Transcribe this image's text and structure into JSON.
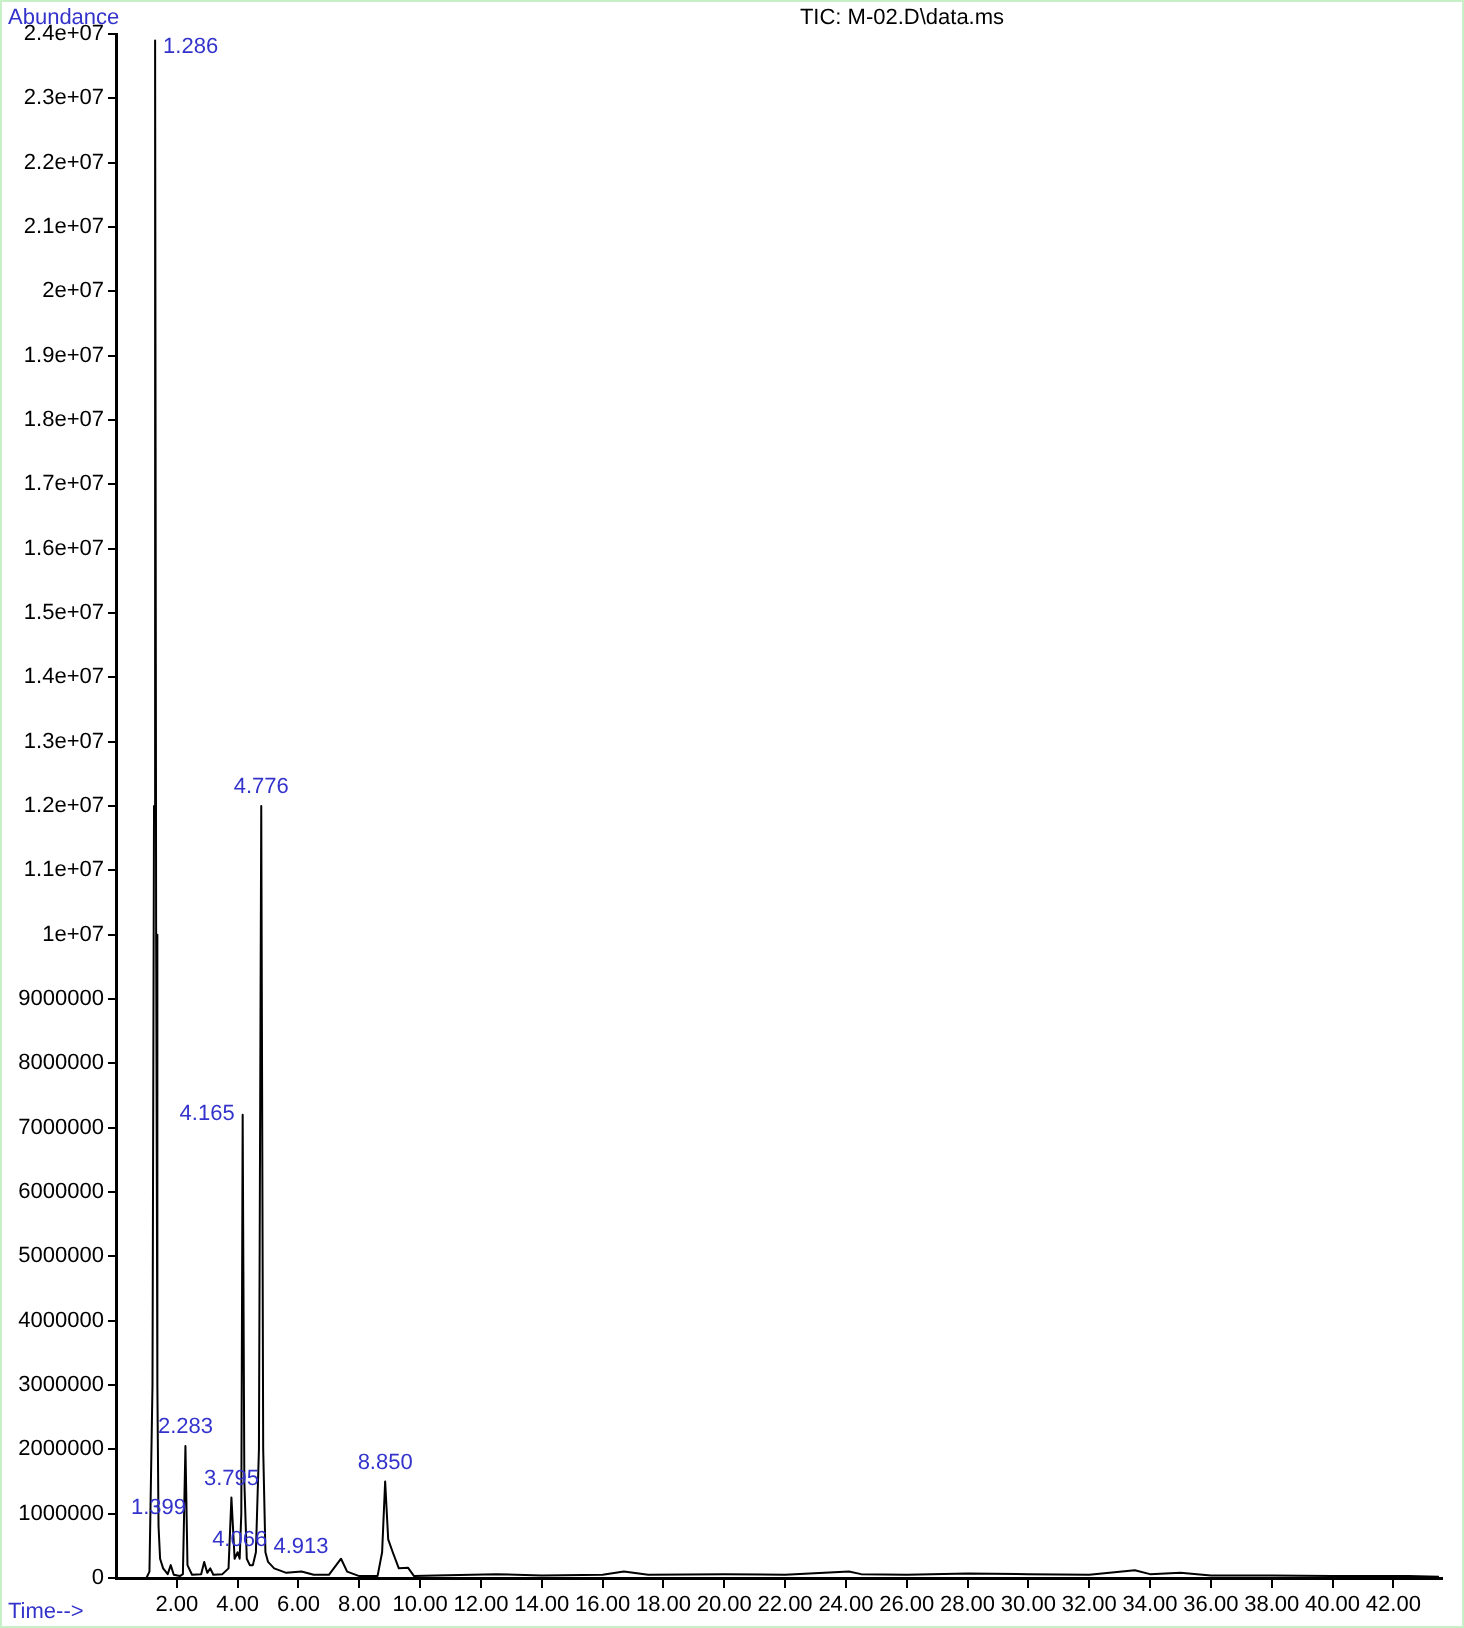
{
  "chart_data": {
    "type": "line",
    "title": "TIC: M-02.D\\data.ms",
    "xlabel": "Time-->",
    "ylabel": "Abundance",
    "series": [
      {
        "color": "#000000",
        "x": [
          0.6,
          1.0,
          1.1,
          1.2,
          1.25,
          1.286,
          1.32,
          1.36,
          1.399,
          1.45,
          1.55,
          1.7,
          1.8,
          1.9,
          2.1,
          2.2,
          2.283,
          2.35,
          2.5,
          2.8,
          2.9,
          3.0,
          3.1,
          3.2,
          3.5,
          3.7,
          3.795,
          3.9,
          4.0,
          4.066,
          4.12,
          4.165,
          4.22,
          4.3,
          4.4,
          4.5,
          4.6,
          4.7,
          4.776,
          4.84,
          4.913,
          5.0,
          5.2,
          5.6,
          6.1,
          6.5,
          7.0,
          7.4,
          7.6,
          8.0,
          8.6,
          8.75,
          8.85,
          8.95,
          9.1,
          9.3,
          9.6,
          9.8,
          10.5,
          12.5,
          14.0,
          16.0,
          16.7,
          17.5,
          20.0,
          22.0,
          24.1,
          24.5,
          26.0,
          28.0,
          30.0,
          32.0,
          33.5,
          34.0,
          35.0,
          36.0,
          38.0,
          40.0,
          42.5,
          43.5
        ],
        "values": [
          0,
          0,
          100000,
          3000000,
          12000000,
          23900000,
          10000000,
          3000000,
          800000,
          300000,
          150000,
          60000,
          200000,
          50000,
          30000,
          60000,
          2050000,
          200000,
          50000,
          60000,
          250000,
          80000,
          150000,
          50000,
          60000,
          150000,
          1250000,
          300000,
          400000,
          300000,
          1000000,
          7200000,
          1500000,
          300000,
          200000,
          200000,
          400000,
          2000000,
          12000000,
          2000000,
          400000,
          250000,
          150000,
          80000,
          100000,
          50000,
          50000,
          300000,
          100000,
          30000,
          30000,
          400000,
          1500000,
          600000,
          400000,
          150000,
          160000,
          30000,
          40000,
          60000,
          40000,
          50000,
          100000,
          50000,
          60000,
          50000,
          100000,
          60000,
          50000,
          70000,
          60000,
          50000,
          120000,
          60000,
          80000,
          40000,
          40000,
          30000,
          30000,
          20000
        ]
      }
    ],
    "xlim": [
      0,
      43.6
    ],
    "xticks": [
      {
        "value": 2,
        "label": "2.00"
      },
      {
        "value": 4,
        "label": "4.00"
      },
      {
        "value": 6,
        "label": "6.00"
      },
      {
        "value": 8,
        "label": "8.00"
      },
      {
        "value": 10,
        "label": "10.00"
      },
      {
        "value": 12,
        "label": "12.00"
      },
      {
        "value": 14,
        "label": "14.00"
      },
      {
        "value": 16,
        "label": "16.00"
      },
      {
        "value": 18,
        "label": "18.00"
      },
      {
        "value": 20,
        "label": "20.00"
      },
      {
        "value": 22,
        "label": "22.00"
      },
      {
        "value": 24,
        "label": "24.00"
      },
      {
        "value": 26,
        "label": "26.00"
      },
      {
        "value": 28,
        "label": "28.00"
      },
      {
        "value": 30,
        "label": "30.00"
      },
      {
        "value": 32,
        "label": "32.00"
      },
      {
        "value": 34,
        "label": "34.00"
      },
      {
        "value": 36,
        "label": "36.00"
      },
      {
        "value": 38,
        "label": "38.00"
      },
      {
        "value": 40,
        "label": "40.00"
      },
      {
        "value": 42,
        "label": "42.00"
      }
    ],
    "ylim": [
      0,
      24000000
    ],
    "yticks": [
      0,
      1000000,
      2000000,
      3000000,
      4000000,
      5000000,
      6000000,
      7000000,
      8000000,
      9000000,
      {
        "value": 10000000,
        "label": "1e+07"
      },
      {
        "value": 11000000,
        "label": "1.1e+07"
      },
      {
        "value": 12000000,
        "label": "1.2e+07"
      },
      {
        "value": 13000000,
        "label": "1.3e+07"
      },
      {
        "value": 14000000,
        "label": "1.4e+07"
      },
      {
        "value": 15000000,
        "label": "1.5e+07"
      },
      {
        "value": 16000000,
        "label": "1.6e+07"
      },
      {
        "value": 17000000,
        "label": "1.7e+07"
      },
      {
        "value": 18000000,
        "label": "1.8e+07"
      },
      {
        "value": 19000000,
        "label": "1.9e+07"
      },
      {
        "value": 20000000,
        "label": "2e+07"
      },
      {
        "value": 21000000,
        "label": "2.1e+07"
      },
      {
        "value": 22000000,
        "label": "2.2e+07"
      },
      {
        "value": 23000000,
        "label": "2.3e+07"
      },
      {
        "value": 24000000,
        "label": "2.4e+07"
      }
    ],
    "grid": false,
    "legend": false,
    "marker": "none",
    "line_style": "solid",
    "annotations": [
      {
        "text": "1.286",
        "x": 1.286,
        "y": 23900000
      },
      {
        "text": "1.399",
        "x": 1.399,
        "y": 800000
      },
      {
        "text": "2.283",
        "x": 2.283,
        "y": 2050000
      },
      {
        "text": "3.795",
        "x": 3.795,
        "y": 1250000
      },
      {
        "text": "4.066",
        "x": 4.066,
        "y": 300000
      },
      {
        "text": "4.165",
        "x": 4.165,
        "y": 7200000
      },
      {
        "text": "4.776",
        "x": 4.776,
        "y": 12000000
      },
      {
        "text": "4.913",
        "x": 4.913,
        "y": 400000
      },
      {
        "text": "8.850",
        "x": 8.85,
        "y": 1500000
      }
    ]
  }
}
